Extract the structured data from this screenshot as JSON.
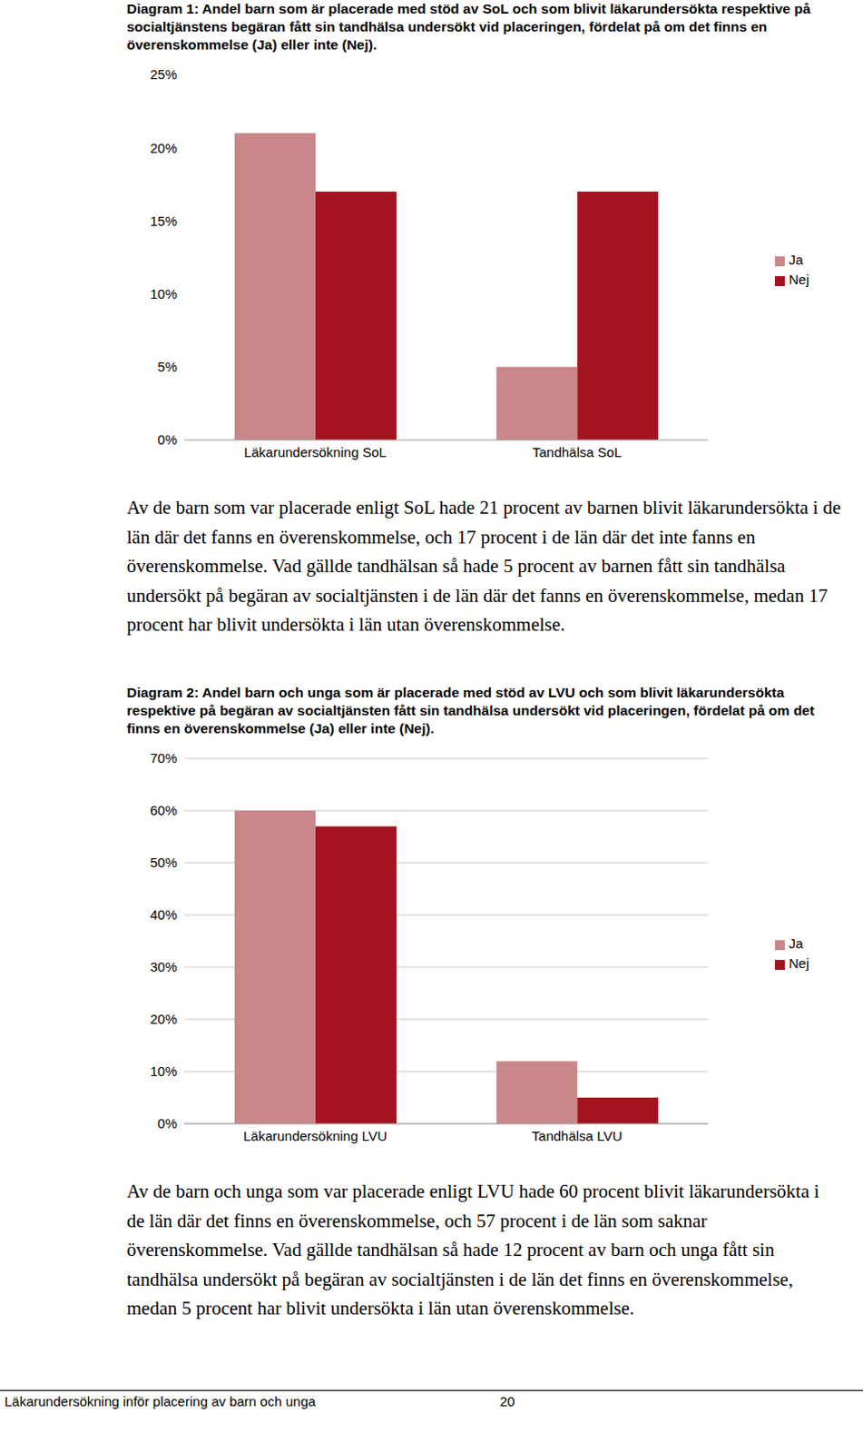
{
  "chart_data": [
    {
      "type": "bar",
      "title": "Diagram 1: Andel barn som är placerade med stöd av SoL och som blivit läkarundersökta respektive på socialtjänstens begäran fått sin tandhälsa undersökt vid placeringen, fördelat på om det finns en överenskommelse (Ja) eller inte (Nej).",
      "categories": [
        "Läkarundersökning SoL",
        "Tandhälsa SoL"
      ],
      "series": [
        {
          "name": "Ja",
          "color": "#c9878a",
          "values": [
            21,
            5
          ]
        },
        {
          "name": "Nej",
          "color": "#a3141f",
          "values": [
            17,
            17
          ]
        }
      ],
      "ylim": [
        0,
        25
      ],
      "yticks": [
        {
          "value": 0,
          "label": "0%"
        },
        {
          "value": 5,
          "label": "5%"
        },
        {
          "value": 10,
          "label": "10%"
        },
        {
          "value": 15,
          "label": "15%"
        },
        {
          "value": 20,
          "label": "20%"
        },
        {
          "value": 25,
          "label": "25%"
        }
      ],
      "grid": false,
      "legend": "right"
    },
    {
      "type": "bar",
      "title": "Diagram 2: Andel barn och unga som är placerade med stöd av LVU och som blivit läkarundersökta respektive på begäran av socialtjänsten fått sin tandhälsa undersökt vid placeringen, fördelat på om det finns en överenskommelse (Ja) eller inte (Nej).",
      "categories": [
        "Läkarundersökning LVU",
        "Tandhälsa LVU"
      ],
      "series": [
        {
          "name": "Ja",
          "color": "#c9878a",
          "values": [
            60,
            12
          ]
        },
        {
          "name": "Nej",
          "color": "#a3141f",
          "values": [
            57,
            5
          ]
        }
      ],
      "ylim": [
        0,
        70
      ],
      "yticks": [
        {
          "value": 0,
          "label": "0%"
        },
        {
          "value": 10,
          "label": "10%"
        },
        {
          "value": 20,
          "label": "20%"
        },
        {
          "value": 30,
          "label": "30%"
        },
        {
          "value": 40,
          "label": "40%"
        },
        {
          "value": 50,
          "label": "50%"
        },
        {
          "value": 60,
          "label": "60%"
        },
        {
          "value": 70,
          "label": "70%"
        }
      ],
      "grid": true,
      "legend": "right"
    }
  ],
  "document": {
    "paragraphs": [
      "Av de barn som var placerade enligt SoL hade 21 procent av barnen blivit läkarundersökta i de län där det fanns en överenskommelse, och 17 procent i de län där det inte fanns en överenskommelse. Vad gällde tandhälsan så hade 5 procent av barnen fått sin tandhälsa undersökt på begäran av socialtjänsten i de län där det fanns en överenskommelse, medan 17 procent har blivit undersökta i län utan överenskommelse.",
      "Av de barn och unga som var placerade enligt LVU hade 60 procent blivit läkarundersökta i de län där det finns en överenskommelse, och 57 procent i de län som saknar överenskommelse. Vad gällde tandhälsan så hade 12 procent av barn och unga fått sin tandhälsa undersökt på begäran av socialtjänsten i de län det finns en överenskommelse, medan 5 procent har blivit undersökta i län utan överenskommelse."
    ],
    "footer": {
      "text": "Läkarundersökning inför placering av barn och unga",
      "page": 20
    }
  }
}
